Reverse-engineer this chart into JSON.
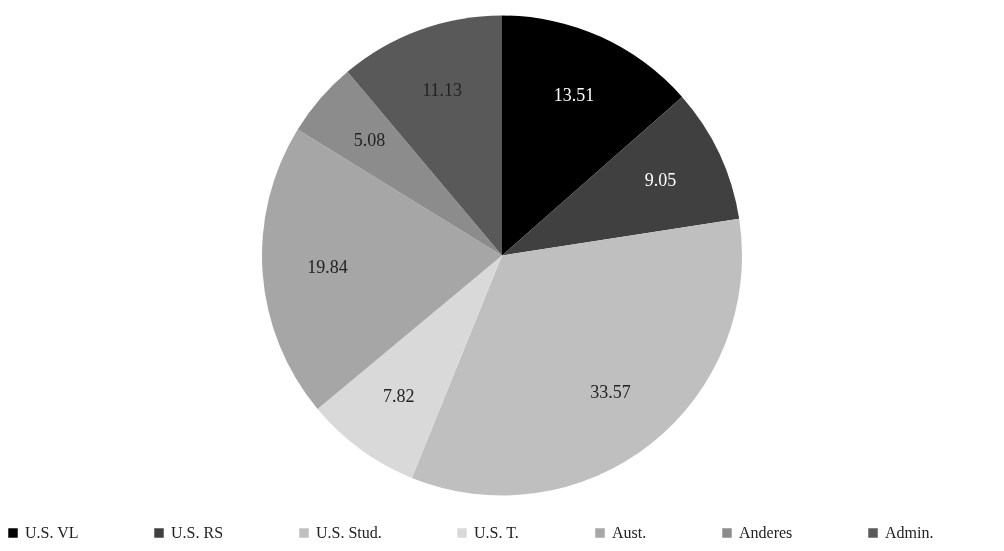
{
  "chart_data": {
    "type": "pie",
    "categories": [
      "U.S. VL",
      "U.S. RS",
      "U.S. Stud.",
      "U.S. T.",
      "Aust.",
      "Anderes",
      "Admin."
    ],
    "values": [
      13.51,
      9.05,
      33.57,
      7.82,
      19.84,
      5.08,
      11.13
    ],
    "colors": [
      "#000000",
      "#404040",
      "#bfbfbf",
      "#d9d9d9",
      "#a6a6a6",
      "#8c8c8c",
      "#595959"
    ],
    "data_labels": true,
    "legend": "bottom"
  }
}
